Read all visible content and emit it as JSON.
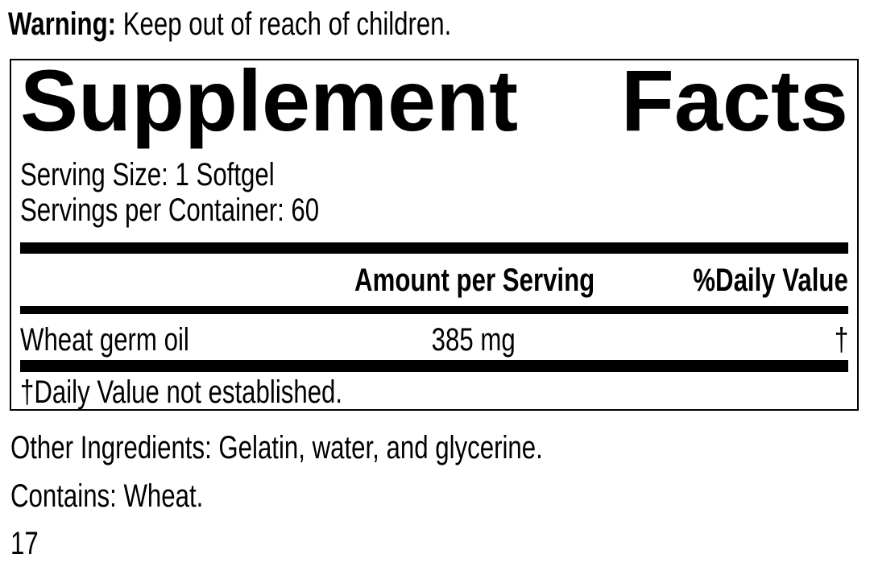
{
  "colors": {
    "text": "#000000",
    "background": "#ffffff",
    "divider": "#000000"
  },
  "warning": {
    "label": "Warning:",
    "text": "Keep out of reach of children."
  },
  "panel": {
    "title_word_1": "Supplement",
    "title_word_2": "Facts",
    "serving_size": "Serving Size: 1 Softgel",
    "servings_per_container": "Servings per Container: 60",
    "columns": {
      "amount": "Amount per Serving",
      "daily_value": "%Daily Value"
    },
    "rows": [
      {
        "name": "Wheat germ oil",
        "amount": "385 mg",
        "daily_value": "†"
      }
    ],
    "footnote": "†Daily Value not established."
  },
  "other_ingredients": "Other Ingredients: Gelatin, water, and glycerine.",
  "contains": "Contains: Wheat.",
  "page_number": "17"
}
